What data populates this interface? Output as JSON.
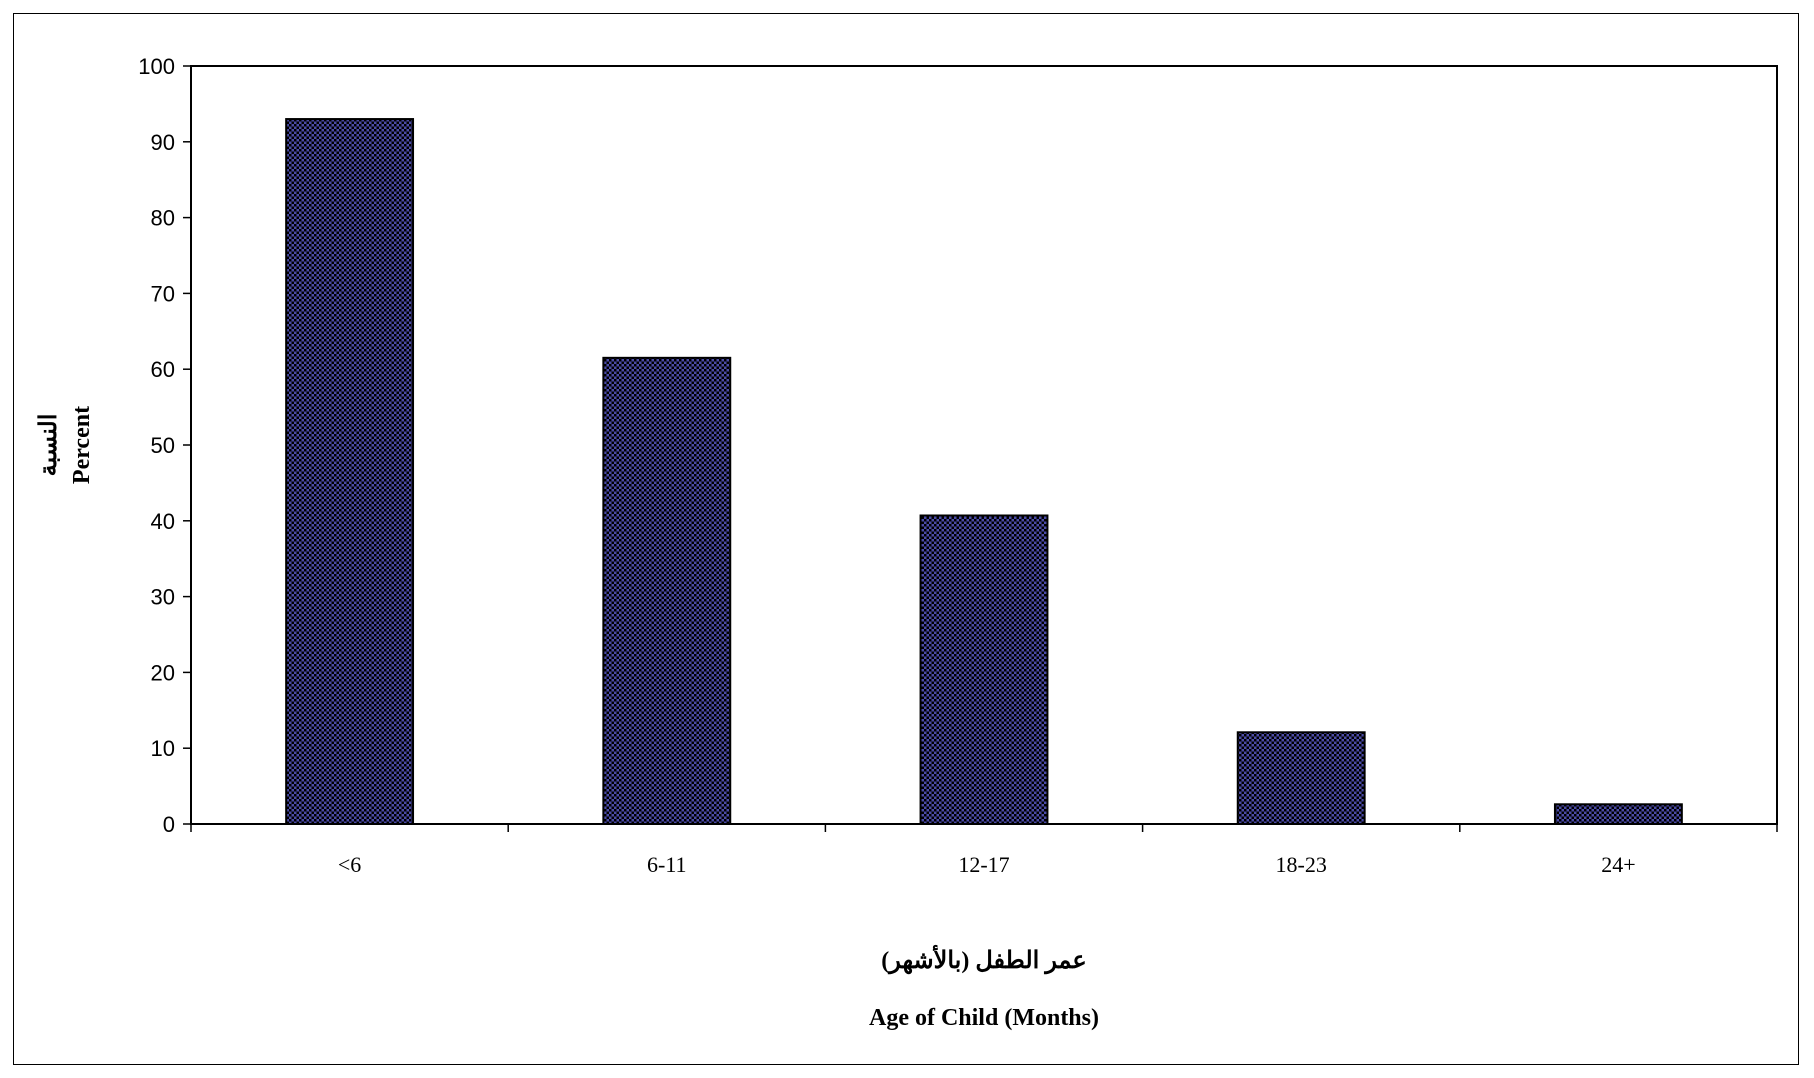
{
  "chart_data": {
    "type": "bar",
    "categories": [
      "<6",
      "6-11",
      "12-17",
      "18-23",
      "24+"
    ],
    "values": [
      93.0,
      61.5,
      40.7,
      12.1,
      2.6
    ],
    "xlabel_ar": "عمر الطفل (بالأشهر)",
    "xlabel": "Age of Child (Months)",
    "ylabel_ar": "النسبة",
    "ylabel": "Percent",
    "ylim": [
      0,
      100
    ],
    "yticks": [
      "0",
      "10",
      "20",
      "30",
      "40",
      "50",
      "60",
      "70",
      "80",
      "90",
      "100"
    ],
    "grid": false,
    "legend": "none",
    "colors": {
      "bar_fill": "#4b4ba8",
      "bar_pattern": "#000000",
      "axis": "#000000",
      "background": "#ffffff"
    }
  }
}
